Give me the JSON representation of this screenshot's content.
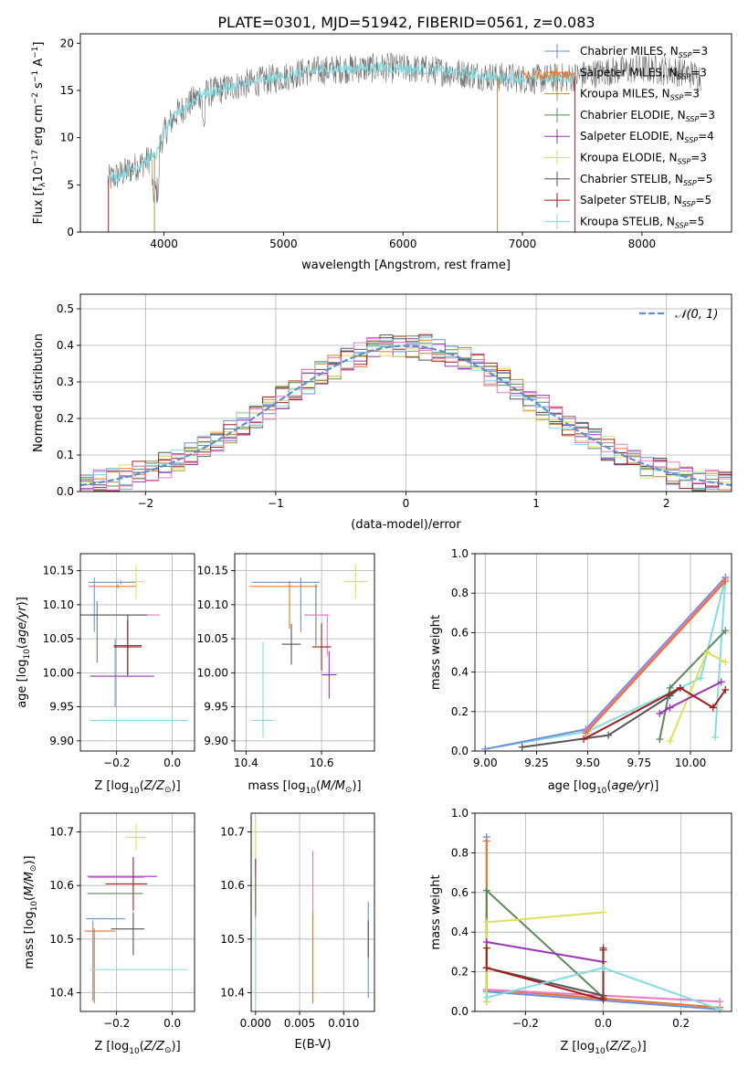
{
  "figure": {
    "title": "PLATE=0301, MJD=51942, FIBERID=0561, z=0.083"
  },
  "colors": {
    "chab_miles": "#6b8fd8",
    "salp_miles": "#e8752a",
    "krou_miles": "#b3923a",
    "chab_elodie": "#5c8a5a",
    "salp_elodie": "#9b35b5",
    "krou_elodie": "#dde05a",
    "chab_stelib": "#555555",
    "salp_stelib": "#a31d1d",
    "krou_stelib": "#82dce0",
    "pink": "#e87ac8",
    "gauss": "#5b8fd0"
  },
  "chart_data": [
    {
      "id": "spectrum",
      "type": "line",
      "title": "PLATE=0301, MJD=51942, FIBERID=0561, z=0.083",
      "xlabel": "wavelength [Angstrom, rest frame]",
      "ylabel": "Flux [f_λ 10^-17 erg cm^-2 s^-1 A^-1]",
      "xlim": [
        3300,
        8750
      ],
      "ylim": [
        0,
        21
      ],
      "xticks": [
        4000,
        5000,
        6000,
        7000,
        8000
      ],
      "yticks": [
        0,
        5,
        10,
        15,
        20
      ],
      "legend_position": "top-right",
      "legend": [
        {
          "name": "Chabrier MILES, N",
          "sub": "SSP",
          "suffix": "=3",
          "color": "chab_miles"
        },
        {
          "name": "Salpeter MILES, N",
          "sub": "SSP",
          "suffix": "=3",
          "color": "salp_miles"
        },
        {
          "name": "Kroupa MILES, N",
          "sub": "SSP",
          "suffix": "=3",
          "color": "krou_miles"
        },
        {
          "name": "Chabrier ELODIE, N",
          "sub": "SSP",
          "suffix": "=3",
          "color": "chab_elodie"
        },
        {
          "name": "Salpeter ELODIE, N",
          "sub": "SSP",
          "suffix": "=4",
          "color": "salp_elodie"
        },
        {
          "name": "Kroupa ELODIE, N",
          "sub": "SSP",
          "suffix": "=3",
          "color": "krou_elodie"
        },
        {
          "name": "Chabrier STELIB, N",
          "sub": "SSP",
          "suffix": "=5",
          "color": "chab_stelib"
        },
        {
          "name": "Salpeter STELIB, N",
          "sub": "SSP",
          "suffix": "=5",
          "color": "salp_stelib"
        },
        {
          "name": "Kroupa STELIB, N",
          "sub": "SSP",
          "suffix": "=5",
          "color": "krou_stelib"
        }
      ],
      "continuum": [
        [
          3530,
          5.5
        ],
        [
          3700,
          6.5
        ],
        [
          3850,
          7.5
        ],
        [
          3950,
          8.5
        ],
        [
          4000,
          10.5
        ],
        [
          4100,
          12.5
        ],
        [
          4300,
          14.5
        ],
        [
          4600,
          15.5
        ],
        [
          4900,
          16.2
        ],
        [
          5200,
          17.0
        ],
        [
          5500,
          17.3
        ],
        [
          5900,
          17.4
        ],
        [
          6200,
          17.2
        ],
        [
          6500,
          16.8
        ],
        [
          6800,
          16.4
        ],
        [
          7100,
          16.2
        ],
        [
          7400,
          16.4
        ],
        [
          7700,
          17.0
        ],
        [
          8000,
          17.3
        ],
        [
          8300,
          17.0
        ],
        [
          8500,
          16.5
        ]
      ]
    },
    {
      "id": "residuals",
      "type": "histogram",
      "xlabel": "(data-model)/error",
      "ylabel": "Normed distribution",
      "xlim": [
        -2.5,
        2.5
      ],
      "ylim": [
        0,
        0.54
      ],
      "xticks": [
        -2,
        -1,
        0,
        1,
        2
      ],
      "yticks": [
        0.0,
        0.1,
        0.2,
        0.3,
        0.4,
        0.5
      ],
      "grid": true,
      "legend_position": "top-right",
      "gauss_label": "𝒩(0, 1)",
      "bin_width": 0.1,
      "series_colors": [
        "chab_miles",
        "salp_miles",
        "krou_miles",
        "chab_elodie",
        "salp_elodie",
        "krou_elodie",
        "chab_stelib",
        "salp_stelib",
        "krou_stelib",
        "pink"
      ]
    },
    {
      "id": "age_vs_Z",
      "type": "scatter",
      "xlabel": "Z [log10(Z/Z⊙)]",
      "ylabel": "age [log10(age/yr)]",
      "xlim": [
        -0.33,
        0.08
      ],
      "ylim": [
        9.885,
        10.175
      ],
      "xticks": [
        -0.2,
        0.0
      ],
      "yticks": [
        9.9,
        9.95,
        10.0,
        10.05,
        10.1,
        10.15
      ],
      "grid": true,
      "points": [
        {
          "color": "chab_miles",
          "x": -0.215,
          "xerr": 0.085,
          "y": 10.133,
          "yerr": 0.003,
          "xv": -0.185
        },
        {
          "color": "salp_miles",
          "x": -0.215,
          "xerr": 0.085,
          "y": 10.127,
          "yerr": 0.003,
          "xv": -0.195
        },
        {
          "color": "krou_elodie",
          "x": -0.13,
          "xerr": 0.03,
          "y": 10.134,
          "yerr": 0.025
        },
        {
          "color": "chab_elodie",
          "x": -0.27,
          "xerr": 0.0,
          "y": 10.06,
          "yerr": 0.045
        },
        {
          "color": "chab_miles",
          "x": -0.28,
          "xerr": 0.0,
          "y": 10.1,
          "yerr": 0.04
        },
        {
          "color": "pink",
          "x": -0.17,
          "xerr": 0.125,
          "y": 10.085,
          "yerr": 0.0,
          "xv": -0.245
        },
        {
          "color": "chab_stelib",
          "x": -0.21,
          "xerr": 0.12,
          "y": 10.085,
          "yerr": 0.0
        },
        {
          "color": "salp_elodie",
          "x": -0.18,
          "xerr": 0.115,
          "y": 9.995,
          "yerr": 0.0,
          "xv": -0.205
        },
        {
          "color": "chab_miles",
          "x": -0.205,
          "xerr": 0.0,
          "y": 10.0,
          "yerr": 0.05
        },
        {
          "color": "chab_stelib",
          "x": -0.16,
          "xerr": 0.05,
          "y": 10.04,
          "yerr": 0.045
        },
        {
          "color": "salp_stelib",
          "x": -0.16,
          "xerr": 0.05,
          "y": 10.038,
          "yerr": 0.04
        },
        {
          "color": "krou_stelib",
          "x": -0.12,
          "xerr": 0.175,
          "y": 9.93,
          "yerr": 0.0,
          "xv": -0.2
        }
      ]
    },
    {
      "id": "age_vs_mass",
      "type": "scatter",
      "xlabel": "mass [log10(M/M⊙)]",
      "ylabel": "",
      "xlim": [
        10.37,
        10.74
      ],
      "ylim": [
        9.885,
        10.175
      ],
      "xticks": [
        10.4,
        10.6
      ],
      "yticks": [
        9.9,
        9.95,
        10.0,
        10.05,
        10.1,
        10.15
      ],
      "grid": true,
      "points": [
        {
          "color": "chab_miles",
          "x": 10.505,
          "xerr": 0.09,
          "y": 10.133,
          "yerr": 0.0
        },
        {
          "color": "chab_miles",
          "x": 10.545,
          "xerr": 0.0,
          "y": 10.1,
          "yerr": 0.04
        },
        {
          "color": "salp_miles",
          "x": 10.5,
          "xerr": 0.09,
          "y": 10.127,
          "yerr": 0.0
        },
        {
          "color": "salp_miles",
          "x": 10.515,
          "xerr": 0.0,
          "y": 10.1,
          "yerr": 0.035
        },
        {
          "color": "krou_elodie",
          "x": 10.69,
          "xerr": 0.03,
          "y": 10.134,
          "yerr": 0.025
        },
        {
          "color": "chab_elodie",
          "x": 10.585,
          "xerr": 0.03,
          "y": 10.085,
          "yerr": 0.045
        },
        {
          "color": "pink",
          "x": 10.59,
          "xerr": 0.03,
          "y": 10.085,
          "yerr": 0.0,
          "xv": 10.615
        },
        {
          "color": "pink",
          "x": 10.615,
          "xerr": 0.0,
          "y": 10.055,
          "yerr": 0.03
        },
        {
          "color": "chab_stelib",
          "x": 10.52,
          "xerr": 0.025,
          "y": 10.042,
          "yerr": 0.03
        },
        {
          "color": "salp_stelib",
          "x": 10.6,
          "xerr": 0.025,
          "y": 10.038,
          "yerr": 0.035
        },
        {
          "color": "salp_elodie",
          "x": 10.62,
          "xerr": 0.02,
          "y": 9.997,
          "yerr": 0.035
        },
        {
          "color": "krou_stelib",
          "x": 10.445,
          "xerr": 0.03,
          "y": 9.93,
          "yerr": 0.0
        },
        {
          "color": "krou_stelib",
          "x": 10.445,
          "xerr": 0.0,
          "y": 9.975,
          "yerr": 0.07
        }
      ]
    },
    {
      "id": "massweight_vs_age",
      "type": "line",
      "xlabel": "age [log10(age/yr)]",
      "ylabel": "mass weight",
      "xlim": [
        8.95,
        10.2
      ],
      "ylim": [
        0,
        1.0
      ],
      "xticks": [
        9.0,
        9.25,
        9.5,
        9.75,
        10.0
      ],
      "yticks": [
        0.0,
        0.2,
        0.4,
        0.6,
        0.8,
        1.0
      ],
      "grid": true,
      "series": [
        {
          "color": "krou_stelib",
          "x": [
            9.0,
            9.5,
            10.05,
            10.17,
            10.12
          ],
          "y": [
            0.01,
            0.1,
            0.37,
            0.88,
            0.07
          ]
        },
        {
          "color": "chab_miles",
          "x": [
            9.0,
            9.49,
            10.17
          ],
          "y": [
            0.01,
            0.11,
            0.88
          ]
        },
        {
          "color": "pink",
          "x": [
            9.49,
            10.17
          ],
          "y": [
            0.1,
            0.87
          ]
        },
        {
          "color": "salp_miles",
          "x": [
            9.49,
            10.17
          ],
          "y": [
            0.09,
            0.86
          ]
        },
        {
          "color": "chab_elodie",
          "x": [
            9.85,
            9.9,
            10.17
          ],
          "y": [
            0.06,
            0.32,
            0.61
          ]
        },
        {
          "color": "krou_elodie",
          "x": [
            9.9,
            10.08,
            10.17
          ],
          "y": [
            0.05,
            0.5,
            0.45
          ]
        },
        {
          "color": "salp_elodie",
          "x": [
            9.85,
            9.9,
            10.15
          ],
          "y": [
            0.19,
            0.22,
            0.35
          ]
        },
        {
          "color": "chab_stelib",
          "x": [
            9.18,
            9.6,
            9.9,
            9.95
          ],
          "y": [
            0.02,
            0.08,
            0.28,
            0.32
          ]
        },
        {
          "color": "salp_stelib",
          "x": [
            9.48,
            9.95,
            10.11,
            10.17
          ],
          "y": [
            0.06,
            0.32,
            0.22,
            0.31
          ]
        }
      ]
    },
    {
      "id": "mass_vs_Z",
      "type": "scatter",
      "xlabel": "Z [log10(Z/Z⊙)]",
      "ylabel": "mass [log10(M/M⊙)]",
      "xlim": [
        -0.33,
        0.08
      ],
      "ylim": [
        10.365,
        10.735
      ],
      "xticks": [
        -0.2,
        0.0
      ],
      "yticks": [
        10.4,
        10.5,
        10.6,
        10.7
      ],
      "grid": true,
      "points": [
        {
          "color": "krou_elodie",
          "x": -0.13,
          "xerr": 0.035,
          "y": 10.69,
          "yerr": 0.025
        },
        {
          "color": "salp_elodie",
          "x": -0.18,
          "xerr": 0.125,
          "y": 10.617,
          "yerr": 0.0
        },
        {
          "color": "pink",
          "x": -0.2,
          "xerr": 0.1,
          "y": 10.615,
          "yerr": 0.0,
          "xv": -0.26
        },
        {
          "color": "salp_stelib",
          "x": -0.165,
          "xerr": 0.075,
          "y": 10.603,
          "yerr": 0.05,
          "xv": -0.14
        },
        {
          "color": "chab_elodie",
          "x": -0.205,
          "xerr": 0.1,
          "y": 10.585,
          "yerr": 0.0
        },
        {
          "color": "chab_miles",
          "x": -0.24,
          "xerr": 0.07,
          "y": 10.538,
          "yerr": 0.0
        },
        {
          "color": "chab_miles",
          "x": -0.285,
          "xerr": 0.0,
          "y": 10.46,
          "yerr": 0.075
        },
        {
          "color": "salp_miles",
          "x": -0.26,
          "xerr": 0.055,
          "y": 10.515,
          "yerr": 0.0
        },
        {
          "color": "salp_miles",
          "x": -0.28,
          "xerr": 0.0,
          "y": 10.45,
          "yerr": 0.07
        },
        {
          "color": "chab_stelib",
          "x": -0.16,
          "xerr": 0.06,
          "y": 10.519,
          "yerr": 0.0
        },
        {
          "color": "chab_stelib",
          "x": -0.14,
          "xerr": 0.0,
          "y": 10.51,
          "yerr": 0.04
        },
        {
          "color": "krou_stelib",
          "x": -0.12,
          "xerr": 0.175,
          "y": 10.443,
          "yerr": 0.0,
          "xv": -0.2
        }
      ]
    },
    {
      "id": "mass_vs_EBV",
      "type": "scatter",
      "xlabel": "E(B-V)",
      "ylabel": "",
      "xlim": [
        -0.0005,
        0.0135
      ],
      "ylim": [
        10.365,
        10.735
      ],
      "xticks": [
        0.0,
        0.005,
        0.01
      ],
      "yticks": [
        10.4,
        10.5,
        10.6,
        10.7
      ],
      "grid": true,
      "points": [
        {
          "color": "krou_elodie",
          "x": 0.0,
          "y": 10.68,
          "yerr": 0.04
        },
        {
          "color": "salp_stelib",
          "x": 0.0,
          "y": 10.6,
          "yerr": 0.05
        },
        {
          "color": "chab_elodie",
          "x": 0.0,
          "y": 10.58,
          "yerr": 0.04
        },
        {
          "color": "krou_stelib",
          "x": 0.0,
          "y": 10.45,
          "yerr": 0.07
        },
        {
          "color": "pink",
          "x": 0.0065,
          "y": 10.6,
          "yerr": 0.065
        },
        {
          "color": "salp_miles",
          "x": 0.0065,
          "y": 10.465,
          "yerr": 0.085
        },
        {
          "color": "chab_miles",
          "x": 0.0128,
          "y": 10.48,
          "yerr": 0.09
        },
        {
          "color": "chab_stelib",
          "x": 0.0128,
          "y": 10.5,
          "yerr": 0.035
        }
      ]
    },
    {
      "id": "massweight_vs_Z",
      "type": "line",
      "xlabel": "Z [log10(Z/Z⊙)]",
      "ylabel": "mass weight",
      "xlim": [
        -0.33,
        0.33
      ],
      "ylim": [
        0,
        1.0
      ],
      "xticks": [
        -0.2,
        0.0,
        0.2
      ],
      "yticks": [
        0.0,
        0.2,
        0.4,
        0.6,
        0.8,
        1.0
      ],
      "grid": true,
      "series": [
        {
          "color": "chab_miles",
          "x": [
            -0.3,
            -0.3,
            0.3
          ],
          "y": [
            0.88,
            0.1,
            0.01
          ]
        },
        {
          "color": "salp_miles",
          "x": [
            -0.3,
            -0.3,
            0.3
          ],
          "y": [
            0.86,
            0.11,
            0.02
          ]
        },
        {
          "color": "pink",
          "x": [
            -0.3,
            0.3
          ],
          "y": [
            0.11,
            0.05
          ]
        },
        {
          "color": "chab_elodie",
          "x": [
            -0.3,
            -0.3,
            0.0
          ],
          "y": [
            0.05,
            0.61,
            0.07
          ]
        },
        {
          "color": "krou_elodie",
          "x": [
            -0.3,
            -0.3,
            0.0
          ],
          "y": [
            0.05,
            0.45,
            0.5
          ]
        },
        {
          "color": "salp_elodie",
          "x": [
            -0.3,
            0.0
          ],
          "y": [
            0.35,
            0.25
          ]
        },
        {
          "color": "chab_stelib",
          "x": [
            -0.3,
            0.0,
            0.0
          ],
          "y": [
            0.22,
            0.08,
            0.32
          ]
        },
        {
          "color": "salp_stelib",
          "x": [
            -0.3,
            -0.3,
            0.0,
            0.0
          ],
          "y": [
            0.32,
            0.22,
            0.06,
            0.31
          ]
        },
        {
          "color": "krou_stelib",
          "x": [
            -0.3,
            0.0,
            0.3
          ],
          "y": [
            0.07,
            0.22,
            0.01
          ]
        }
      ]
    }
  ]
}
